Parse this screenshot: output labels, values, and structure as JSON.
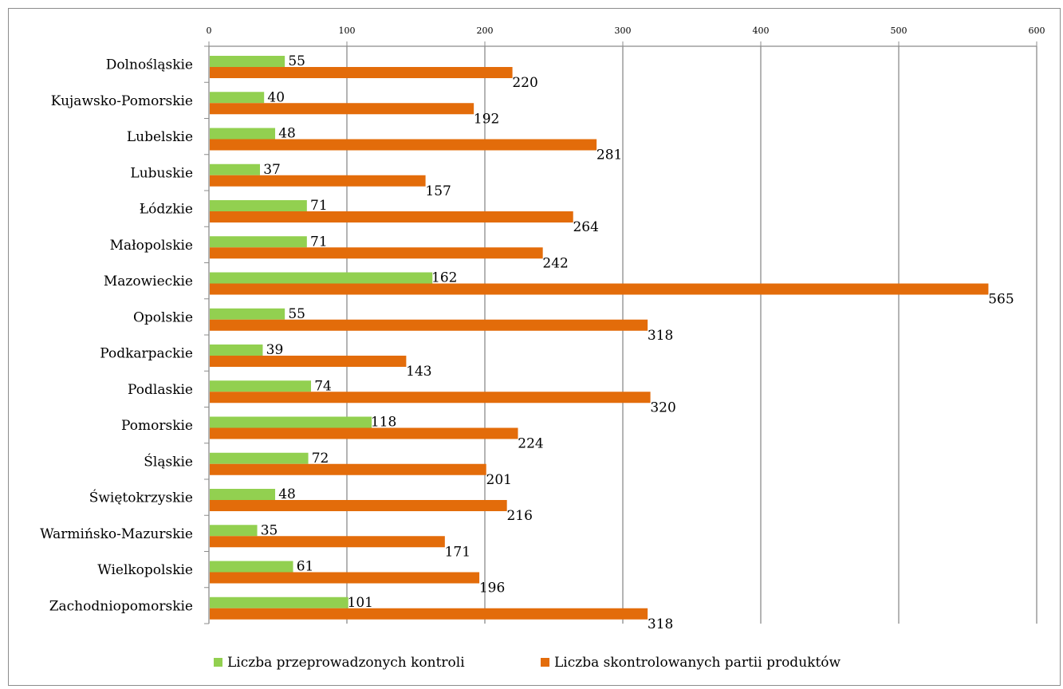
{
  "chart_data": {
    "type": "bar",
    "orientation": "horizontal",
    "categories": [
      "Dolnośląskie",
      "Kujawsko-Pomorskie",
      "Lubelskie",
      "Lubuskie",
      "Łódzkie",
      "Małopolskie",
      "Mazowieckie",
      "Opolskie",
      "Podkarpackie",
      "Podlaskie",
      "Pomorskie",
      "Śląskie",
      "Świętokrzyskie",
      "Warmińsko-Mazurskie",
      "Wielkopolskie",
      "Zachodniopomorskie"
    ],
    "series": [
      {
        "name": "Liczba przeprowadzonych kontroli",
        "color": "#92d050",
        "values": [
          55,
          40,
          48,
          37,
          71,
          71,
          162,
          55,
          39,
          74,
          118,
          72,
          48,
          35,
          61,
          101
        ]
      },
      {
        "name": "Liczba skontrolowanych partii produktów",
        "color": "#e36c0a",
        "values": [
          220,
          192,
          281,
          157,
          264,
          242,
          565,
          318,
          143,
          320,
          224,
          201,
          216,
          171,
          196,
          318
        ]
      }
    ],
    "xlim": [
      0,
      600
    ],
    "xticks": [
      0,
      100,
      200,
      300,
      400,
      500,
      600
    ],
    "x_axis_position": "top",
    "grid": "vertical",
    "legend": "bottom"
  }
}
